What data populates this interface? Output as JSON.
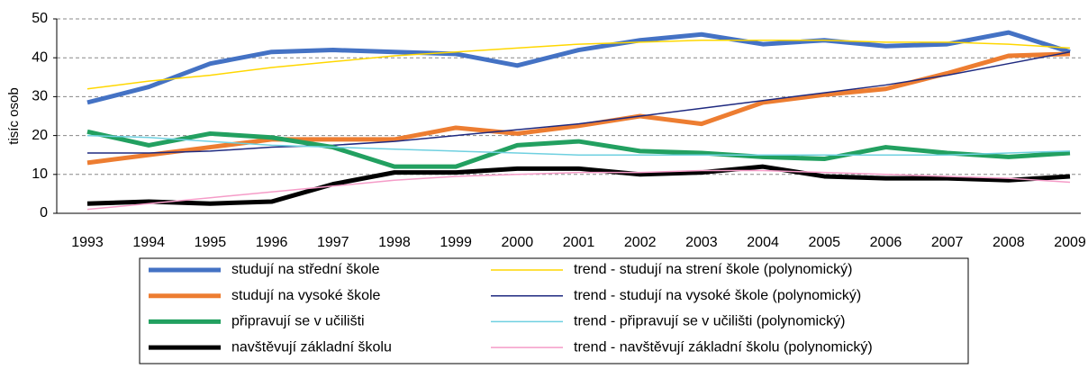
{
  "chart_data": {
    "type": "line",
    "ylabel": "tisíc osob",
    "categories": [
      "1993",
      "1994",
      "1995",
      "1996",
      "1997",
      "1998",
      "1999",
      "2000",
      "2001",
      "2002",
      "2003",
      "2004",
      "2005",
      "2006",
      "2007",
      "2008",
      "2009"
    ],
    "ylim": [
      0,
      50
    ],
    "yticks": [
      0,
      10,
      20,
      30,
      40,
      50
    ],
    "grid": true,
    "series": [
      {
        "name": "studují na střední škole",
        "color": "#4472c4",
        "width": 5,
        "values": [
          28.5,
          32.5,
          38.5,
          41.5,
          42,
          41.5,
          41,
          38,
          42,
          44.5,
          46,
          43.5,
          44.5,
          43,
          43.5,
          46.5,
          41.5
        ]
      },
      {
        "name": "trend - studují na strení škole (polynomický)",
        "color": "#ffd700",
        "width": 1.5,
        "values": [
          32,
          34,
          35.5,
          37.5,
          39,
          40.5,
          41.5,
          42.5,
          43.5,
          44,
          44.5,
          44.5,
          44.5,
          44,
          44,
          43.5,
          42.5
        ]
      },
      {
        "name": "studují na vysoké škole",
        "color": "#ed7d31",
        "width": 5,
        "values": [
          13,
          15,
          17,
          19,
          19,
          19,
          22,
          20.5,
          22.5,
          25,
          23,
          28.5,
          30.5,
          32,
          36,
          40.5,
          41
        ]
      },
      {
        "name": "trend - studují na vysoké škole (polynomický)",
        "color": "#1f2a80",
        "width": 1.5,
        "values": [
          15.5,
          15.5,
          16,
          17,
          17.5,
          18.5,
          20,
          21.5,
          23,
          25,
          27,
          29,
          31,
          33,
          35.5,
          38.5,
          41.5
        ]
      },
      {
        "name": "připravují se v učilišti",
        "color": "#22a060",
        "width": 5,
        "values": [
          21,
          17.5,
          20.5,
          19.5,
          17,
          12,
          12,
          17.5,
          18.5,
          16,
          15.5,
          14.5,
          14,
          17,
          15.5,
          14.5,
          15.5
        ]
      },
      {
        "name": "trend - připravují se v učilišti (polynomický)",
        "color": "#6fd0e0",
        "width": 1.5,
        "values": [
          20,
          19.5,
          18.5,
          17.5,
          17,
          16.5,
          16,
          15.5,
          15,
          15,
          15,
          15,
          15,
          15,
          15,
          15.5,
          16
        ]
      },
      {
        "name": "navštěvují základní školu",
        "color": "#000000",
        "width": 5,
        "values": [
          2.5,
          3,
          2.5,
          3,
          7.5,
          10.5,
          10.5,
          11.5,
          11.5,
          10,
          10.5,
          12,
          9.5,
          9,
          9,
          8.5,
          9.5
        ]
      },
      {
        "name": "trend - navštěvují základní školu (polynomický)",
        "color": "#f59cc8",
        "width": 1.5,
        "values": [
          1,
          2.5,
          4,
          5.5,
          7,
          8.5,
          9.5,
          10,
          10.5,
          10.5,
          11,
          11,
          10.5,
          10,
          9.5,
          9,
          8
        ]
      }
    ]
  }
}
